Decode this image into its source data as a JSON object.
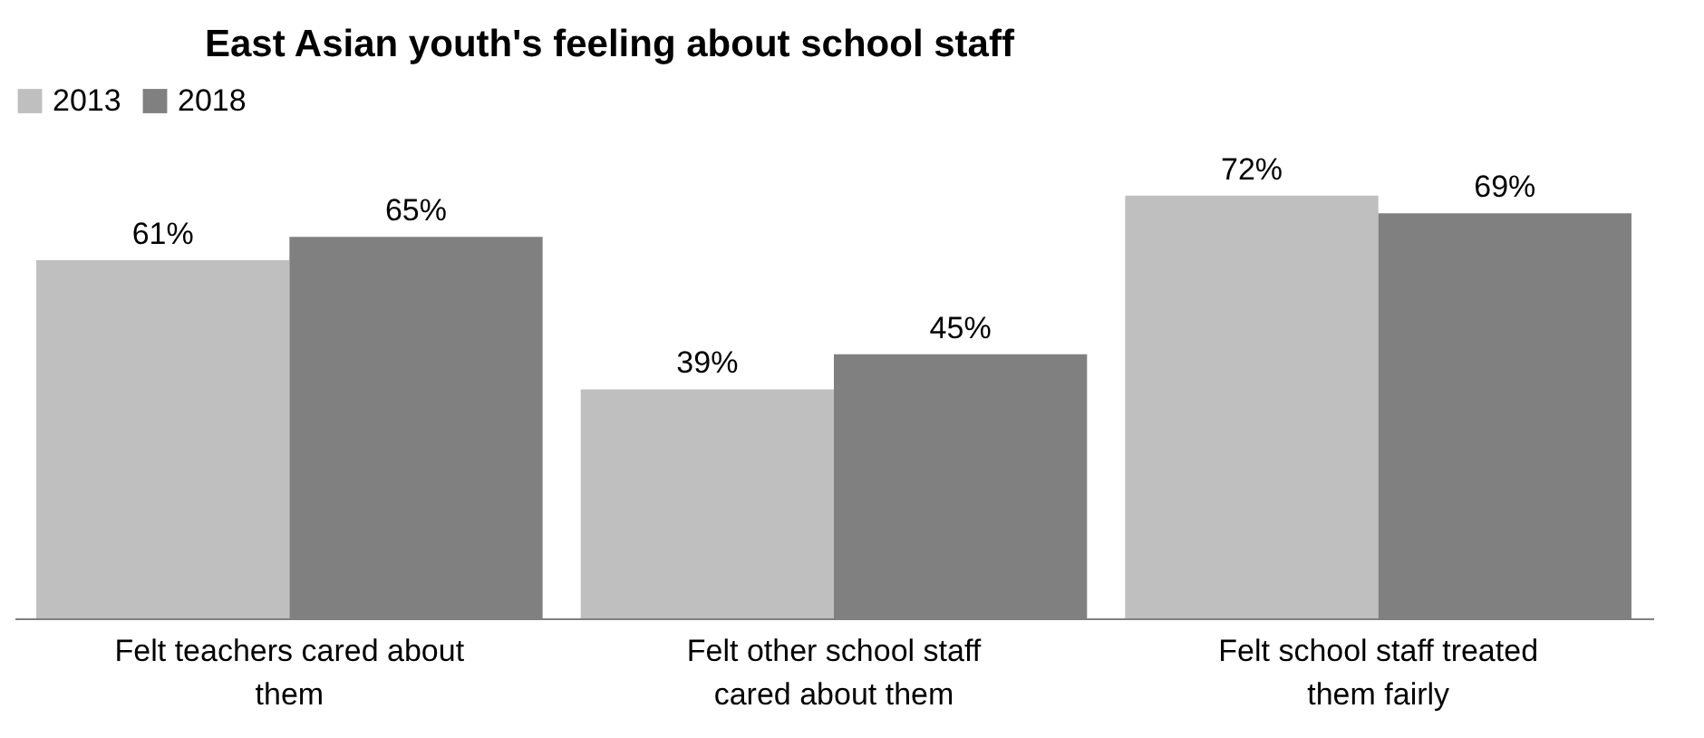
{
  "chart_data": {
    "type": "bar",
    "title": "East Asian youth's feeling about school staff",
    "categories": [
      "Felt teachers cared about them",
      "Felt other school staff cared about them",
      "Felt school staff treated them fairly"
    ],
    "series": [
      {
        "name": "2013",
        "color": "#bfbfbf",
        "values": [
          61,
          39,
          72
        ],
        "value_labels": [
          "61%",
          "39%",
          "72%"
        ]
      },
      {
        "name": "2018",
        "color": "#808080",
        "values": [
          65,
          45,
          69
        ],
        "value_labels": [
          "65%",
          "45%",
          "69%"
        ]
      }
    ],
    "legend": "top",
    "grid": false
  }
}
